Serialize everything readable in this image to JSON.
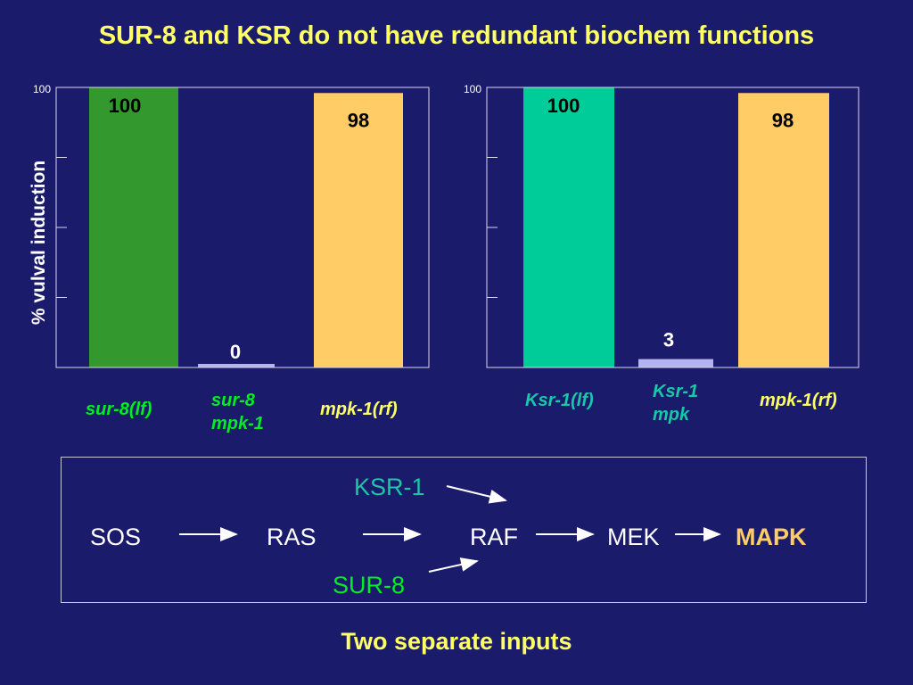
{
  "title": "SUR-8 and KSR do not have redundant biochem functions",
  "chart_data": [
    {
      "type": "bar",
      "ylabel": "% vulval induction",
      "ylim": [
        0,
        100
      ],
      "ytick_label": "100",
      "categories": [
        "sur-8(lf)",
        "sur-8\nmpk-1",
        "mpk-1(rf)"
      ],
      "values": [
        100,
        0,
        98
      ],
      "value_labels": [
        "100",
        "0",
        "98"
      ],
      "colors": [
        "#33992e",
        "#b3b3f0",
        "#ffcc66"
      ],
      "label_colors": [
        "#00ee22",
        "#00ee22",
        "#ffff66"
      ]
    },
    {
      "type": "bar",
      "ylim": [
        0,
        100
      ],
      "ytick_label": "100",
      "categories": [
        "Ksr-1(lf)",
        "Ksr-1\nmpk",
        "mpk-1(rf)"
      ],
      "values": [
        100,
        3,
        98
      ],
      "value_labels": [
        "100",
        "3",
        "98"
      ],
      "colors": [
        "#00cc99",
        "#b3b3f0",
        "#ffcc66"
      ],
      "label_colors": [
        "#1ac8a8",
        "#1ac8a8",
        "#ffff66"
      ]
    }
  ],
  "pathway": {
    "ksr1": "KSR-1",
    "sur8": "SUR-8",
    "sos": "SOS",
    "ras": "RAS",
    "raf": "RAF",
    "mek": "MEK",
    "mapk": "MAPK",
    "colors": {
      "ksr1": "#1ac8a8",
      "sur8": "#00ee22",
      "mapk": "#ffcc66",
      "default": "#ffffff"
    }
  },
  "subtitle": "Two separate inputs"
}
